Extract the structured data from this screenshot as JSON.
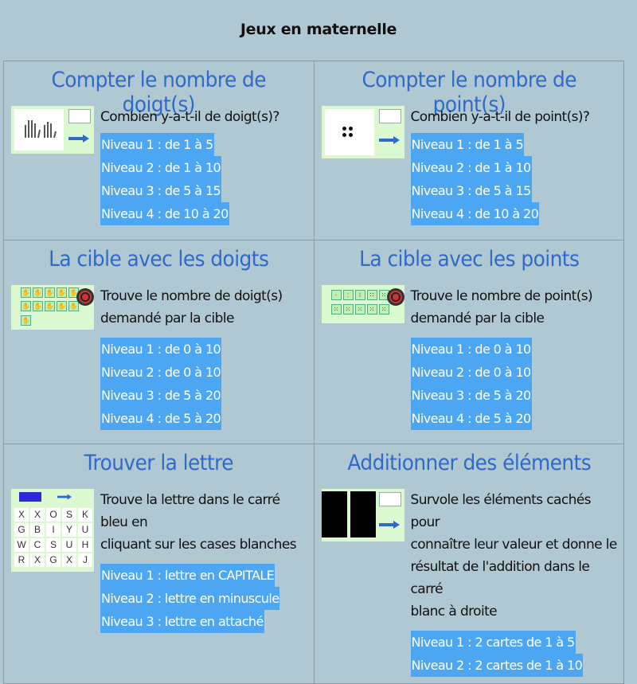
{
  "page": {
    "title": "Jeux en maternelle"
  },
  "colors": {
    "background": "#afc8d2",
    "title_blue": "#2f6ac9",
    "level_blue": "#4da6f2",
    "thumb_green": "#dcf8d0"
  },
  "games": [
    {
      "title": "Compter le nombre de doigt(s)",
      "description": [
        "Combien y-a-t-il de doigt(s)?"
      ],
      "thumbnail_icon": "hands-icon",
      "levels": [
        "Niveau 1 : de 1 à 5",
        "Niveau 2 : de 1 à 10",
        "Niveau 3 : de 5 à 15",
        "Niveau 4 : de 10 à 20"
      ]
    },
    {
      "title": "Compter le nombre de point(s)",
      "description": [
        "Combien y-a-t-il de point(s)?"
      ],
      "thumbnail_icon": "dots-icon",
      "levels": [
        "Niveau 1 : de 1 à 5",
        "Niveau 2 : de 1 à 10",
        "Niveau 3 : de 5 à 15",
        "Niveau 4 : de 10 à 20"
      ]
    },
    {
      "title": "La cible avec les doigts",
      "description": [
        "Trouve le nombre de doigt(s)",
        "demandé par la cible"
      ],
      "thumbnail_icon": "finger-cards-icon",
      "levels": [
        "Niveau 1 : de 0 à 10",
        "Niveau 2 : de 0 à 10",
        "Niveau 3 : de 5 à 20",
        "Niveau 4 : de 5 à 20"
      ]
    },
    {
      "title": "La cible avec les points",
      "description": [
        "Trouve le nombre de point(s)",
        "demandé par la cible"
      ],
      "thumbnail_icon": "dot-cards-icon",
      "levels": [
        "Niveau 1 : de 0 à 10",
        "Niveau 2 : de 0 à 10",
        "Niveau 3 : de 5 à 20",
        "Niveau 4 : de 5 à 20"
      ]
    },
    {
      "title": "Trouver la lettre",
      "description": [
        "Trouve la lettre dans le carré bleu en",
        "cliquant sur les cases blanches"
      ],
      "thumbnail_icon": "letter-grid-icon",
      "letters": [
        "X",
        "X",
        "O",
        "S",
        "K",
        "G",
        "B",
        "I",
        "Y",
        "U",
        "W",
        "C",
        "S",
        "U",
        "H",
        "R",
        "X",
        "G",
        "X",
        "J"
      ],
      "levels": [
        "Niveau 1 : lettre en CAPITALE",
        "Niveau 2 : lettre en minuscule",
        "Niveau 3 : lettre en attaché"
      ]
    },
    {
      "title": "Additionner des éléments",
      "description": [
        "Survole les éléments cachés pour",
        "connaître leur valeur et donne le",
        "résultat de l'addition dans le carré",
        "blanc à droite"
      ],
      "thumbnail_icon": "hidden-cards-icon",
      "levels": [
        "Niveau 1 : 2 cartes de 1 à 5",
        "Niveau 2 : 2 cartes de 1 à 10"
      ]
    }
  ]
}
